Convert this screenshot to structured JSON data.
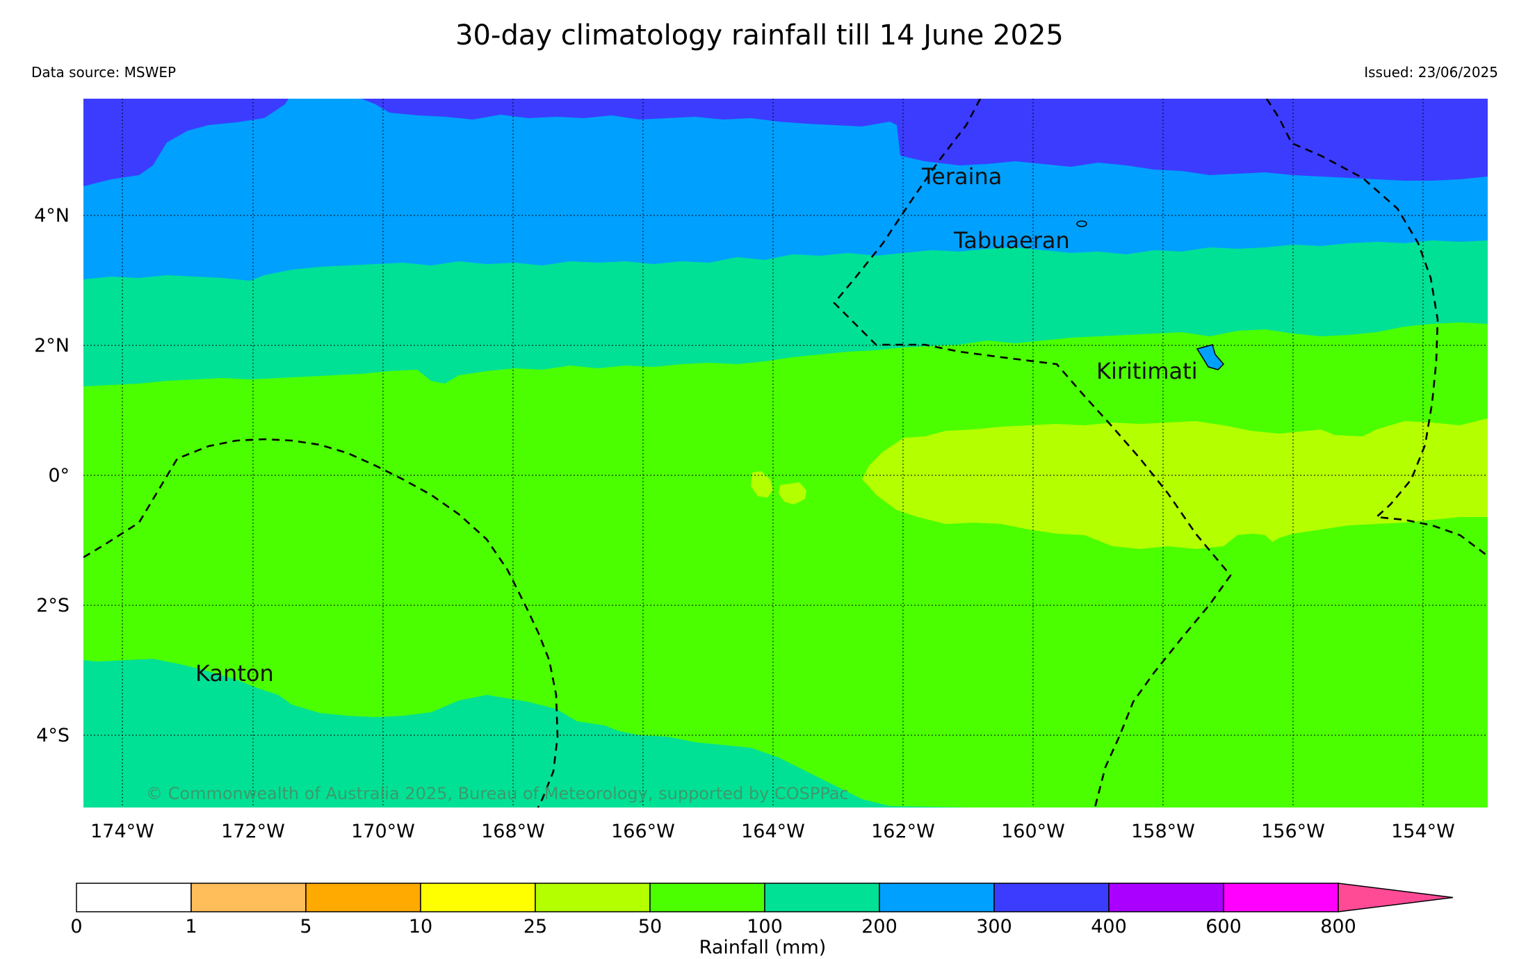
{
  "title": "30-day climatology rainfall till 14 June 2025",
  "data_source": "Data source: MSWEP",
  "issued": "Issued: 23/06/2025",
  "copyright": "© Commonwealth of Australia 2025, Bureau of Meteorology, supported by COSPPac",
  "map": {
    "lon_range": [
      -174.6,
      -153.0
    ],
    "lat_range": [
      -5.1,
      5.8
    ],
    "lon_ticks": [
      "174°W",
      "172°W",
      "170°W",
      "168°W",
      "166°W",
      "164°W",
      "162°W",
      "160°W",
      "158°W",
      "156°W",
      "154°W"
    ],
    "lat_ticks": [
      "4°N",
      "2°N",
      "0°",
      "2°S",
      "4°S"
    ],
    "places": [
      {
        "name": "Teraina",
        "lon": -160.4,
        "lat": 4.7
      },
      {
        "name": "Tabuaeran",
        "lon": -159.35,
        "lat": 3.85
      },
      {
        "name": "Kiritimati",
        "lon": -157.4,
        "lat": 1.87
      },
      {
        "name": "Kanton",
        "lon": -171.7,
        "lat": -2.8
      }
    ],
    "rainfall_zones_mm": [
      {
        "range": "300-400",
        "color": "#3c3cff",
        "description": "north edge"
      },
      {
        "range": "200-300",
        "color": "#00a0ff"
      },
      {
        "range": "100-200",
        "color": "#00e196"
      },
      {
        "range": "50-100",
        "color": "#4bff00"
      },
      {
        "range": "25-50",
        "color": "#b4ff00",
        "description": "equatorial band east of 163°W"
      }
    ]
  },
  "colorbar": {
    "title": "Rainfall (mm)",
    "ticks": [
      "0",
      "1",
      "5",
      "10",
      "25",
      "50",
      "100",
      "200",
      "300",
      "400",
      "600",
      "800"
    ],
    "colors": [
      "#ffffff",
      "#ffbe5a",
      "#ffaa00",
      "#ffff00",
      "#b4ff00",
      "#4bff00",
      "#00e196",
      "#00a0ff",
      "#3c3cff",
      "#aa00ff",
      "#ff00ff",
      "#ff4b96"
    ]
  }
}
